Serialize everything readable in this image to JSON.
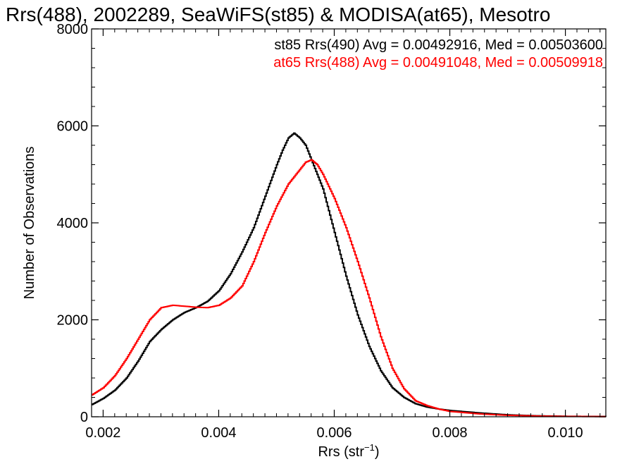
{
  "chart_data": {
    "type": "line",
    "step": true,
    "title": "Rrs(488), 2002289, SeaWiFS(st85) & MODISA(at65), Mesotro",
    "xlabel": "Rrs (str",
    "xlabel_sup": "−1",
    "xlabel_close": ")",
    "ylabel": "Number of Observations",
    "xlim": [
      0.0018,
      0.0107
    ],
    "ylim": [
      0,
      8000
    ],
    "x_ticks": [
      {
        "value": 0.002,
        "label": "0.002"
      },
      {
        "value": 0.004,
        "label": "0.004"
      },
      {
        "value": 0.006,
        "label": "0.006"
      },
      {
        "value": 0.008,
        "label": "0.008"
      },
      {
        "value": 0.01,
        "label": "0.010"
      }
    ],
    "y_ticks": [
      {
        "value": 0,
        "label": "0"
      },
      {
        "value": 2000,
        "label": "2000"
      },
      {
        "value": 4000,
        "label": "4000"
      },
      {
        "value": 6000,
        "label": "6000"
      },
      {
        "value": 8000,
        "label": "8000"
      }
    ],
    "grid": false,
    "legend_position": "top-right",
    "series": [
      {
        "legend": "st85 Rrs(490) Avg = 0.00492916, Med = 0.00503600",
        "color": "#000000",
        "points": [
          [
            0.0018,
            250
          ],
          [
            0.002,
            380
          ],
          [
            0.0022,
            550
          ],
          [
            0.0024,
            800
          ],
          [
            0.0026,
            1150
          ],
          [
            0.0028,
            1550
          ],
          [
            0.003,
            1800
          ],
          [
            0.0032,
            2000
          ],
          [
            0.0034,
            2150
          ],
          [
            0.0036,
            2250
          ],
          [
            0.0038,
            2380
          ],
          [
            0.004,
            2600
          ],
          [
            0.0042,
            2950
          ],
          [
            0.0044,
            3400
          ],
          [
            0.0046,
            3900
          ],
          [
            0.0048,
            4550
          ],
          [
            0.005,
            5200
          ],
          [
            0.0051,
            5500
          ],
          [
            0.0052,
            5750
          ],
          [
            0.0053,
            5850
          ],
          [
            0.0054,
            5750
          ],
          [
            0.0055,
            5600
          ],
          [
            0.0056,
            5300
          ],
          [
            0.0058,
            4700
          ],
          [
            0.006,
            3800
          ],
          [
            0.0062,
            2900
          ],
          [
            0.0064,
            2100
          ],
          [
            0.0066,
            1450
          ],
          [
            0.0068,
            950
          ],
          [
            0.007,
            600
          ],
          [
            0.0072,
            400
          ],
          [
            0.0074,
            270
          ],
          [
            0.0076,
            200
          ],
          [
            0.0078,
            160
          ],
          [
            0.008,
            130
          ],
          [
            0.0085,
            80
          ],
          [
            0.009,
            40
          ],
          [
            0.0095,
            20
          ],
          [
            0.01,
            10
          ],
          [
            0.0107,
            5
          ]
        ]
      },
      {
        "legend": "at65 Rrs(488) Avg = 0.00491048, Med = 0.00509918",
        "color": "#ff0000",
        "points": [
          [
            0.0018,
            450
          ],
          [
            0.002,
            600
          ],
          [
            0.0022,
            850
          ],
          [
            0.0024,
            1200
          ],
          [
            0.0026,
            1600
          ],
          [
            0.0028,
            2000
          ],
          [
            0.003,
            2250
          ],
          [
            0.0032,
            2300
          ],
          [
            0.0034,
            2280
          ],
          [
            0.0036,
            2260
          ],
          [
            0.0038,
            2250
          ],
          [
            0.004,
            2300
          ],
          [
            0.0042,
            2450
          ],
          [
            0.0044,
            2700
          ],
          [
            0.0046,
            3200
          ],
          [
            0.0048,
            3800
          ],
          [
            0.005,
            4350
          ],
          [
            0.0052,
            4800
          ],
          [
            0.0054,
            5100
          ],
          [
            0.0055,
            5250
          ],
          [
            0.0056,
            5300
          ],
          [
            0.0057,
            5200
          ],
          [
            0.0058,
            5000
          ],
          [
            0.006,
            4500
          ],
          [
            0.0062,
            3900
          ],
          [
            0.0064,
            3200
          ],
          [
            0.0066,
            2450
          ],
          [
            0.0068,
            1650
          ],
          [
            0.007,
            1000
          ],
          [
            0.0072,
            580
          ],
          [
            0.0074,
            330
          ],
          [
            0.0076,
            230
          ],
          [
            0.0078,
            160
          ],
          [
            0.008,
            110
          ],
          [
            0.0085,
            60
          ],
          [
            0.009,
            30
          ],
          [
            0.0095,
            15
          ],
          [
            0.01,
            8
          ],
          [
            0.0107,
            4
          ]
        ]
      }
    ]
  }
}
